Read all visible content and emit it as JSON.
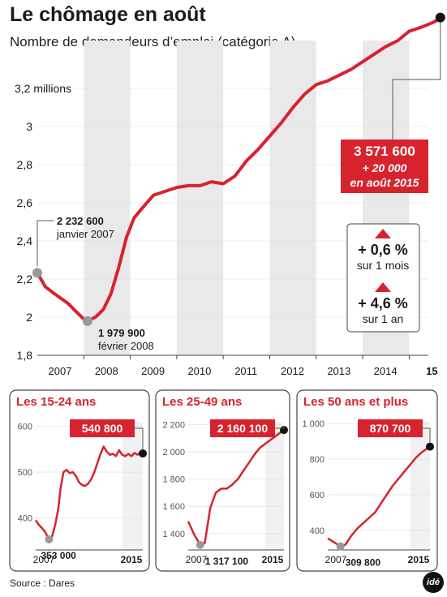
{
  "title": "Le chômage en août",
  "subtitle": "Nombre de demandeurs d’emploi (catégorie A)",
  "source": "Source : Dares",
  "logo_text": "idé",
  "colors": {
    "line": "#d7232e",
    "band": "#e9e9e9",
    "accent": "#d7232e",
    "text": "#1a1a1a"
  },
  "main_chart": {
    "type": "line",
    "y_unit_label": "3,2 millions",
    "y_ticks": [
      "1,8",
      "2",
      "2,2",
      "2,4",
      "2,6",
      "2,8",
      "3",
      "3,2 millions"
    ],
    "y_tick_values": [
      1.8,
      2.0,
      2.2,
      2.4,
      2.6,
      2.8,
      3.0,
      3.2
    ],
    "ylim": [
      1.8,
      3.65
    ],
    "x_ticks": [
      "2007",
      "2008",
      "2009",
      "2010",
      "2011",
      "2012",
      "2013",
      "2014",
      "15"
    ],
    "start_point": {
      "value": "2 232 600",
      "date": "janvier 2007"
    },
    "min_point": {
      "value": "1 979 900",
      "date": "février 2008"
    },
    "last_point": {
      "value": "3 571 600",
      "change": "+ 20 000",
      "date": "en août 2015"
    },
    "stats": [
      {
        "value": "+ 0,6 %",
        "period": "sur 1 mois"
      },
      {
        "value": "+ 4,6 %",
        "period": "sur 1 an"
      }
    ]
  },
  "chart_data": [
    {
      "type": "line",
      "title": "Le chômage en août",
      "subtitle": "Nombre de demandeurs d’emploi (catégorie A)",
      "ylabel": "millions",
      "ylim": [
        1.8,
        3.65
      ],
      "x": [
        2007.0,
        2007.17,
        2007.33,
        2007.5,
        2007.67,
        2007.83,
        2008.0,
        2008.08,
        2008.25,
        2008.42,
        2008.58,
        2008.75,
        2008.92,
        2009.08,
        2009.25,
        2009.5,
        2009.75,
        2010.0,
        2010.25,
        2010.5,
        2010.75,
        2011.0,
        2011.25,
        2011.5,
        2011.75,
        2012.0,
        2012.25,
        2012.5,
        2012.75,
        2013.0,
        2013.25,
        2013.5,
        2013.75,
        2014.0,
        2014.25,
        2014.5,
        2014.75,
        2015.0,
        2015.25,
        2015.5,
        2015.58,
        2015.67
      ],
      "values": [
        2.2326,
        2.16,
        2.13,
        2.1,
        2.07,
        2.03,
        1.99,
        1.9799,
        2.0,
        2.04,
        2.12,
        2.26,
        2.42,
        2.52,
        2.57,
        2.64,
        2.66,
        2.68,
        2.69,
        2.69,
        2.71,
        2.7,
        2.74,
        2.82,
        2.88,
        2.95,
        3.02,
        3.1,
        3.17,
        3.22,
        3.24,
        3.27,
        3.3,
        3.34,
        3.38,
        3.42,
        3.45,
        3.5,
        3.52,
        3.545,
        3.555,
        3.5716
      ]
    },
    {
      "type": "line",
      "title": "Les 15-24 ans",
      "ylim": [
        330,
        610
      ],
      "y_ticks": [
        400,
        500,
        600
      ],
      "x": [
        2007.0,
        2007.25,
        2007.5,
        2007.75,
        2008.08,
        2008.33,
        2008.58,
        2008.83,
        2009.0,
        2009.25,
        2009.5,
        2009.75,
        2010.0,
        2010.25,
        2010.5,
        2010.75,
        2011.0,
        2011.25,
        2011.5,
        2011.75,
        2012.0,
        2012.25,
        2012.5,
        2012.75,
        2013.0,
        2013.25,
        2013.5,
        2013.75,
        2014.0,
        2014.25,
        2014.5,
        2014.75,
        2015.0,
        2015.25,
        2015.5,
        2015.67
      ],
      "values": [
        395,
        385,
        378,
        370,
        353,
        360,
        385,
        420,
        462,
        500,
        505,
        498,
        500,
        492,
        478,
        472,
        470,
        475,
        485,
        500,
        520,
        540,
        556,
        545,
        538,
        540,
        535,
        548,
        538,
        535,
        540,
        535,
        542,
        538,
        543,
        540.8
      ]
    },
    {
      "type": "line",
      "title": "Les 25-49 ans",
      "ylim": [
        1280,
        2220
      ],
      "y_ticks": [
        1400,
        1600,
        1800,
        2000,
        2200
      ],
      "x": [
        2007.0,
        2007.5,
        2008.08,
        2008.5,
        2009.0,
        2009.5,
        2010.0,
        2010.5,
        2011.0,
        2011.5,
        2012.0,
        2012.5,
        2013.0,
        2013.5,
        2014.0,
        2014.5,
        2015.0,
        2015.67
      ],
      "values": [
        1490,
        1400,
        1317.1,
        1330,
        1590,
        1700,
        1730,
        1730,
        1760,
        1800,
        1860,
        1920,
        1980,
        2030,
        2060,
        2090,
        2120,
        2160.1
      ]
    },
    {
      "type": "line",
      "title": "Les 50 ans et plus",
      "ylim": [
        290,
        1010
      ],
      "y_ticks": [
        400,
        600,
        800,
        1000
      ],
      "x": [
        2007.0,
        2007.5,
        2008.08,
        2008.5,
        2009.0,
        2009.5,
        2010.0,
        2010.5,
        2011.0,
        2011.5,
        2012.0,
        2012.5,
        2013.0,
        2013.5,
        2014.0,
        2014.5,
        2015.0,
        2015.67
      ],
      "values": [
        355,
        335,
        309.8,
        320,
        370,
        410,
        440,
        470,
        500,
        550,
        600,
        650,
        690,
        730,
        770,
        810,
        840,
        870.7
      ]
    }
  ],
  "panels": [
    {
      "title": "Les 15-24 ans",
      "y_ticks": [
        "400",
        "500",
        "600"
      ],
      "min_label": "353 000",
      "last_label": "540 800",
      "x_start": "2007",
      "x_end": "2015"
    },
    {
      "title": "Les 25-49 ans",
      "y_ticks": [
        "1 400",
        "1 600",
        "1 800",
        "2 000",
        "2 200"
      ],
      "min_label": "1 317 100",
      "last_label": "2 160 100",
      "x_start": "2007",
      "x_end": "2015"
    },
    {
      "title": "Les 50 ans et plus",
      "y_ticks": [
        "400",
        "600",
        "800",
        "1 000"
      ],
      "min_label": "309 800",
      "last_label": "870 700",
      "x_start": "2007",
      "x_end": "2015"
    }
  ]
}
